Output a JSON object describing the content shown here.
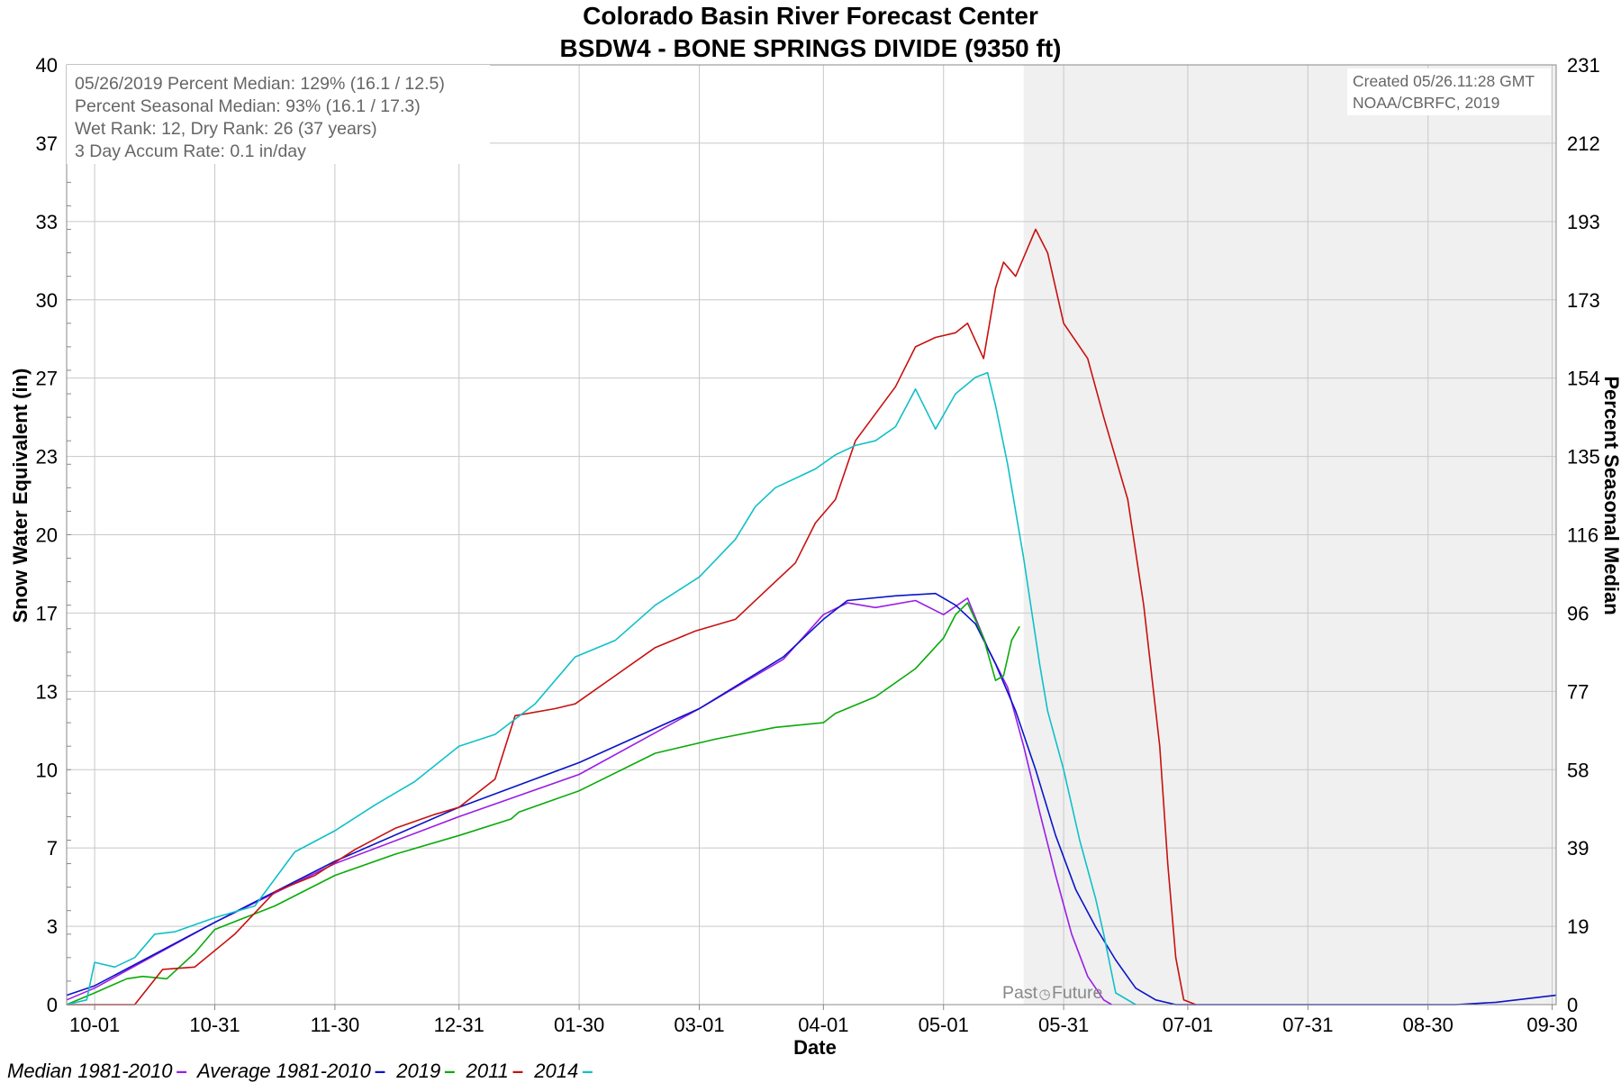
{
  "title_line1": "Colorado Basin River Forecast Center",
  "title_line2": "BSDW4 - BONE SPRINGS DIVIDE (9350 ft)",
  "info_box": [
    "05/26/2019 Percent Median: 129% (16.1 / 12.5)",
    "Percent Seasonal Median: 93% (16.1 / 17.3)",
    "Wet Rank: 12, Dry Rank: 26  (37 years)",
    "3 Day Accum Rate: 0.1 in/day"
  ],
  "credit_box": [
    "Created 05/26.11:28 GMT",
    "NOAA/CBRFC, 2019"
  ],
  "past_label": "Past",
  "future_label": "Future",
  "chart_data": {
    "type": "line",
    "title": "Colorado Basin River Forecast Center",
    "subtitle": "BSDW4 - BONE SPRINGS DIVIDE (9350 ft)",
    "xlabel": "Date",
    "ylabel": "Snow Water Equivalent (in)",
    "y2label": "Percent Seasonal Median",
    "x_tick_labels": [
      "10-01",
      "10-31",
      "11-30",
      "12-31",
      "01-30",
      "03-01",
      "04-01",
      "05-01",
      "05-31",
      "07-01",
      "07-31",
      "08-30",
      "09-30"
    ],
    "x_tick_days": [
      0,
      30,
      60,
      91,
      121,
      151,
      182,
      212,
      242,
      273,
      303,
      333,
      364
    ],
    "y_ticks": [
      0,
      3,
      7,
      10,
      13,
      17,
      20,
      23,
      27,
      30,
      33,
      37,
      40
    ],
    "y2_ticks": [
      0,
      19,
      39,
      58,
      77,
      96,
      116,
      135,
      154,
      173,
      193,
      212,
      231
    ],
    "ylim": [
      0,
      40
    ],
    "y2lim": [
      0,
      231
    ],
    "xlim_days": [
      -7,
      365
    ],
    "grid": true,
    "shade_future_from_day": 232,
    "legend_position": "bottom",
    "series": [
      {
        "name": "Median 1981-2010",
        "color": "#9a1ee6",
        "x": [
          -7,
          0,
          30,
          60,
          91,
          121,
          151,
          172,
          182,
          188,
          195,
          205,
          212,
          218,
          223,
          228,
          232,
          236,
          240,
          244,
          248,
          252,
          254
        ],
        "y": [
          0.2,
          0.7,
          3.5,
          6.0,
          8.0,
          9.8,
          12.6,
          14.7,
          16.6,
          17.1,
          16.9,
          17.2,
          16.6,
          17.3,
          15.2,
          13.5,
          11.0,
          8.2,
          5.5,
          3.0,
          1.2,
          0.2,
          0.0
        ]
      },
      {
        "name": "Average 1981-2010",
        "color": "#0a14c8",
        "x": [
          -7,
          0,
          30,
          60,
          91,
          121,
          151,
          172,
          182,
          188,
          200,
          210,
          215,
          220,
          225,
          230,
          235,
          240,
          245,
          250,
          255,
          260,
          265,
          270,
          280,
          300,
          320,
          340,
          350,
          360,
          365
        ],
        "y": [
          0.4,
          0.8,
          3.5,
          6.1,
          8.4,
          10.3,
          12.6,
          14.8,
          16.4,
          17.2,
          17.4,
          17.5,
          17.0,
          16.2,
          14.5,
          12.5,
          10.0,
          7.2,
          4.9,
          3.3,
          1.9,
          0.7,
          0.2,
          0.0,
          0.0,
          0.0,
          0.0,
          0.0,
          0.1,
          0.3,
          0.4
        ]
      },
      {
        "name": "2019",
        "color": "#0aaa0a",
        "x": [
          -7,
          0,
          8,
          12,
          18,
          25,
          30,
          45,
          60,
          75,
          91,
          104,
          106,
          121,
          140,
          155,
          170,
          182,
          185,
          195,
          205,
          212,
          215,
          218,
          222,
          225,
          227,
          229,
          231
        ],
        "y": [
          0.0,
          0.5,
          1.1,
          1.2,
          1.1,
          2.2,
          3.2,
          4.2,
          5.5,
          6.4,
          7.2,
          7.9,
          8.2,
          9.1,
          10.7,
          11.3,
          11.8,
          12.0,
          12.4,
          13.1,
          14.3,
          15.6,
          16.6,
          17.1,
          15.6,
          13.8,
          14.0,
          15.5,
          16.1
        ]
      },
      {
        "name": "2011",
        "color": "#c81010",
        "x": [
          -7,
          0,
          10,
          17,
          25,
          35,
          45,
          55,
          65,
          75,
          85,
          91,
          100,
          105,
          115,
          120,
          130,
          140,
          150,
          160,
          170,
          175,
          180,
          185,
          190,
          200,
          205,
          210,
          215,
          218,
          222,
          225,
          227,
          230,
          235,
          238,
          242,
          248,
          252,
          258,
          262,
          266,
          268,
          270,
          272,
          275
        ],
        "y": [
          0.0,
          0.0,
          0.0,
          1.5,
          1.6,
          3.0,
          4.8,
          5.5,
          6.6,
          7.5,
          8.1,
          8.4,
          9.6,
          12.3,
          12.6,
          12.8,
          14.0,
          15.2,
          15.9,
          16.4,
          18.0,
          18.8,
          20.5,
          21.5,
          24.0,
          26.3,
          28.0,
          28.4,
          28.6,
          29.0,
          27.5,
          30.5,
          31.6,
          31.0,
          33.0,
          32.0,
          29.0,
          27.5,
          25.0,
          21.5,
          17.0,
          11.0,
          6.0,
          2.0,
          0.2,
          0.0
        ]
      },
      {
        "name": "2014",
        "color": "#10c0c8",
        "x": [
          -7,
          -2,
          0,
          5,
          10,
          15,
          20,
          30,
          40,
          50,
          60,
          70,
          80,
          91,
          100,
          110,
          120,
          130,
          140,
          151,
          160,
          165,
          170,
          180,
          185,
          190,
          195,
          200,
          205,
          210,
          215,
          220,
          223,
          225,
          228,
          232,
          236,
          238,
          242,
          246,
          250,
          252,
          255,
          260
        ],
        "y": [
          0.0,
          0.2,
          1.8,
          1.6,
          2.0,
          3.0,
          3.1,
          3.7,
          4.2,
          6.5,
          7.4,
          8.5,
          9.5,
          11.0,
          11.5,
          12.8,
          14.8,
          15.5,
          17.0,
          18.2,
          19.8,
          21.2,
          22.0,
          22.8,
          23.4,
          23.8,
          24.0,
          24.6,
          26.2,
          24.5,
          26.0,
          26.7,
          26.9,
          25.5,
          23.0,
          19.0,
          14.5,
          12.5,
          10.0,
          7.0,
          4.5,
          3.0,
          0.5,
          0.0
        ]
      }
    ]
  }
}
